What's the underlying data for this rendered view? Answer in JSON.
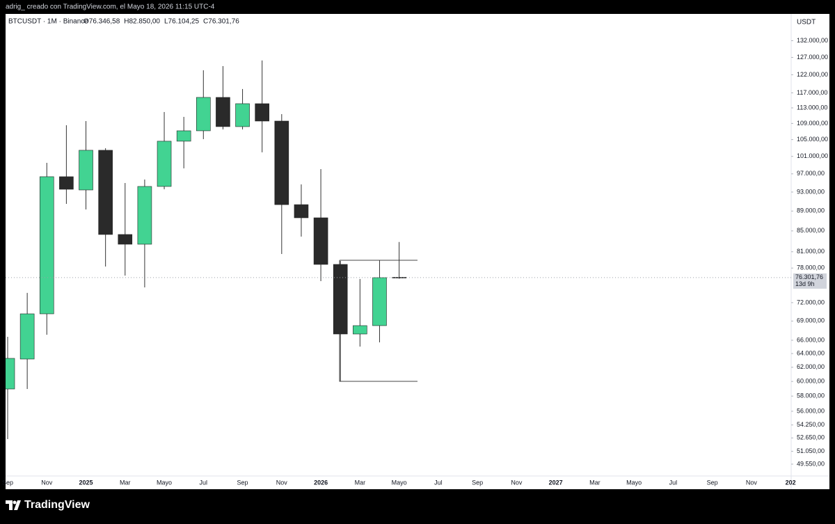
{
  "page": {
    "caption": "adrig_ creado con TradingView.com, el Mayo 18, 2026 11:15 UTC-4",
    "brand": "TradingView"
  },
  "chart_data": {
    "type": "candlestick",
    "symbol_label": "BTCUSDT · 1M · Binance",
    "ohlc_labels": [
      "O76.346,58",
      "H82.850,00",
      "L76.104,25",
      "C76.301,76"
    ],
    "currency": "USDT",
    "categories": [
      "Sep",
      null,
      "Nov",
      null,
      "2025",
      null,
      "Mar",
      null,
      "Mayo",
      null,
      "Jul",
      null,
      "Sep",
      null,
      "Nov",
      null,
      "2026",
      null,
      "Mar",
      null,
      "Mayo",
      null,
      "Jul",
      null,
      "Sep",
      null,
      "Nov",
      null,
      "2027",
      null,
      "Mar",
      null,
      "Mayo",
      null,
      "Jul",
      null,
      "Sep",
      null,
      "Nov",
      null,
      "202"
    ],
    "open": [
      58960,
      63190,
      70160,
      96360,
      93450,
      102440,
      84300,
      82420,
      94210,
      104610,
      107160,
      115770,
      108200,
      114100,
      109600,
      90330,
      87620,
      78660,
      66960,
      68270,
      76346.58,
      null,
      null,
      null,
      null,
      null,
      null,
      null,
      null,
      null,
      null,
      null,
      null,
      null,
      null,
      null,
      null,
      null,
      null,
      null,
      null
    ],
    "high": [
      66530,
      73640,
      99510,
      108550,
      109600,
      102930,
      94960,
      95730,
      111920,
      110670,
      123270,
      124470,
      118040,
      126090,
      111380,
      94660,
      98080,
      79290,
      76050,
      79420,
      82850,
      null,
      null,
      null,
      null,
      null,
      null,
      null,
      null,
      null,
      null,
      null,
      null,
      null,
      null,
      null,
      null,
      null,
      null,
      null,
      null
    ],
    "low": [
      52510,
      58960,
      66850,
      90490,
      89330,
      78280,
      76660,
      74590,
      93600,
      98240,
      105110,
      107500,
      107500,
      101950,
      80580,
      83890,
      75680,
      60000,
      65040,
      65680,
      76104.25,
      null,
      null,
      null,
      null,
      null,
      null,
      null,
      null,
      null,
      null,
      null,
      null,
      null,
      null,
      null,
      null,
      null,
      null,
      null,
      null
    ],
    "close": [
      63290,
      70160,
      96360,
      93600,
      102440,
      84300,
      82420,
      94210,
      104610,
      107160,
      115770,
      108200,
      114100,
      109600,
      90330,
      87620,
      78660,
      66960,
      68270,
      76290,
      76301.76,
      null,
      null,
      null,
      null,
      null,
      null,
      null,
      null,
      null,
      null,
      null,
      null,
      null,
      null,
      null,
      null,
      null,
      null,
      null,
      null
    ],
    "up_color": "#42d392",
    "down_color": "#2a2a2a",
    "log_scale": true,
    "ylim": [
      48210,
      140440
    ],
    "yticks": [
      {
        "value": 132000,
        "label": "132.000,00"
      },
      {
        "value": 127000,
        "label": "127.000,00"
      },
      {
        "value": 122000,
        "label": "122.000,00"
      },
      {
        "value": 117000,
        "label": "117.000,00"
      },
      {
        "value": 113000,
        "label": "113.000,00"
      },
      {
        "value": 109000,
        "label": "109.000,00"
      },
      {
        "value": 105000,
        "label": "105.000,00"
      },
      {
        "value": 101000,
        "label": "101.000,00"
      },
      {
        "value": 97000,
        "label": "97.000,00"
      },
      {
        "value": 93000,
        "label": "93.000,00"
      },
      {
        "value": 89000,
        "label": "89.000,00"
      },
      {
        "value": 85000,
        "label": "85.000,00"
      },
      {
        "value": 81000,
        "label": "81.000,00"
      },
      {
        "value": 78000,
        "label": "78.000,00"
      },
      {
        "value": 72000,
        "label": "72.000,00"
      },
      {
        "value": 69000,
        "label": "69.000,00"
      },
      {
        "value": 66000,
        "label": "66.000,00"
      },
      {
        "value": 64000,
        "label": "64.000,00"
      },
      {
        "value": 62000,
        "label": "62.000,00"
      },
      {
        "value": 60000,
        "label": "60.000,00"
      },
      {
        "value": 58000,
        "label": "58.000,00"
      },
      {
        "value": 56000,
        "label": "56.000,00"
      },
      {
        "value": 54250,
        "label": "54.250,00"
      },
      {
        "value": 52650,
        "label": "52.650,00"
      },
      {
        "value": 51050,
        "label": "51.050,00"
      },
      {
        "value": 49550,
        "label": "49.550,00"
      }
    ],
    "last_price": {
      "value": 76301.76,
      "label": "76.301,76"
    },
    "countdown": "13d 9h"
  }
}
